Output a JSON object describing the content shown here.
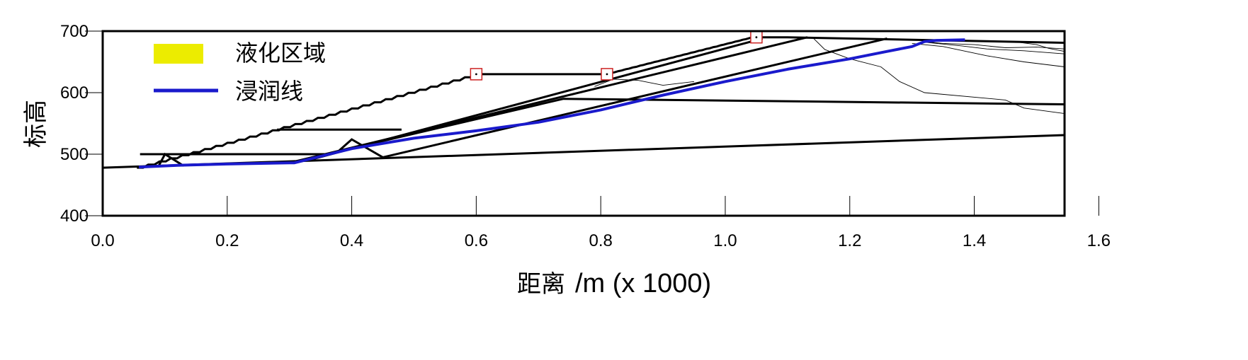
{
  "chart_data": {
    "type": "line",
    "xlabel": "距离",
    "xlabel_unit": "/m (x  1000)",
    "ylabel": "标高",
    "xlim": [
      0.0,
      1.6
    ],
    "ylim": [
      400,
      700
    ],
    "x_ticks": [
      "0.0",
      "0.2",
      "0.4",
      "0.6",
      "0.8",
      "1.0",
      "1.2",
      "1.4",
      "1.6"
    ],
    "y_ticks": [
      "400",
      "500",
      "600",
      "700"
    ],
    "grid": false,
    "legend_position": "top-left",
    "legend": [
      {
        "name": "液化区域",
        "color": "#ecec00",
        "kind": "patch"
      },
      {
        "name": "浸润线",
        "color": "#1a1acc",
        "kind": "line"
      }
    ],
    "series": [
      {
        "name": "浸润线",
        "color": "#1a1acc",
        "points": [
          [
            0.058,
            479
          ],
          [
            0.12,
            482
          ],
          [
            0.2,
            484
          ],
          [
            0.3,
            486
          ],
          [
            0.308,
            486
          ],
          [
            0.4,
            509
          ],
          [
            0.5,
            526
          ],
          [
            0.6,
            538
          ],
          [
            0.7,
            552
          ],
          [
            0.8,
            572
          ],
          [
            0.9,
            596
          ],
          [
            1.0,
            618
          ],
          [
            1.1,
            638
          ],
          [
            1.2,
            655
          ],
          [
            1.26,
            667
          ],
          [
            1.3,
            675
          ],
          [
            1.32,
            683
          ],
          [
            1.34,
            685
          ],
          [
            1.385,
            686
          ]
        ]
      }
    ],
    "boundaries": {
      "foundation_top": [
        [
          0.0,
          478
        ],
        [
          1.545,
          531
        ]
      ],
      "crest_level": [
        [
          0.3,
          486
        ],
        [
          0.74,
          590
        ],
        [
          1.545,
          581
        ]
      ],
      "slope_face_outer": [
        [
          0.055,
          478
        ],
        [
          0.6,
          630
        ],
        [
          1.045,
          690
        ],
        [
          1.545,
          681
        ]
      ],
      "berms": [
        [
          [
            0.6,
            630
          ],
          [
            0.81,
            630
          ]
        ],
        [
          [
            0.06,
            500
          ],
          [
            0.36,
            500
          ]
        ],
        [
          [
            0.28,
            540
          ],
          [
            0.48,
            540
          ]
        ]
      ],
      "inner_faces": [
        [
          [
            0.3,
            486
          ],
          [
            1.132,
            690
          ]
        ],
        [
          [
            0.45,
            495
          ],
          [
            1.26,
            688
          ]
        ],
        [
          [
            0.33,
            490
          ],
          [
            1.06,
            688
          ]
        ]
      ],
      "small_toe_dikes": [
        [
          [
            0.09,
            481
          ],
          [
            0.1,
            500
          ],
          [
            0.13,
            481
          ]
        ],
        [
          [
            0.38,
            506
          ],
          [
            0.4,
            524
          ],
          [
            0.45,
            495
          ]
        ]
      ]
    },
    "contours": [
      [
        [
          0.79,
          610
        ],
        [
          0.82,
          622
        ],
        [
          0.86,
          620
        ],
        [
          0.9,
          612
        ],
        [
          0.95,
          618
        ]
      ],
      [
        [
          1.14,
          690
        ],
        [
          1.16,
          670
        ],
        [
          1.2,
          655
        ],
        [
          1.25,
          642
        ],
        [
          1.28,
          618
        ],
        [
          1.32,
          600
        ],
        [
          1.45,
          588
        ],
        [
          1.48,
          575
        ],
        [
          1.545,
          566
        ]
      ],
      [
        [
          1.32,
          683
        ],
        [
          1.35,
          680
        ],
        [
          1.4,
          678
        ],
        [
          1.45,
          673
        ],
        [
          1.5,
          674
        ],
        [
          1.545,
          671
        ]
      ],
      [
        [
          1.32,
          682
        ],
        [
          1.38,
          676
        ],
        [
          1.42,
          671
        ],
        [
          1.48,
          668
        ],
        [
          1.545,
          663
        ]
      ],
      [
        [
          1.3,
          680
        ],
        [
          1.35,
          675
        ],
        [
          1.42,
          660
        ],
        [
          1.48,
          650
        ],
        [
          1.545,
          642
        ]
      ],
      [
        [
          1.42,
          684
        ],
        [
          1.47,
          682
        ],
        [
          1.5,
          678
        ],
        [
          1.52,
          672
        ],
        [
          1.545,
          667
        ]
      ]
    ],
    "markers": [
      {
        "x": 0.6,
        "y": 630
      },
      {
        "x": 0.81,
        "y": 630
      },
      {
        "x": 1.05,
        "y": 690
      }
    ]
  }
}
